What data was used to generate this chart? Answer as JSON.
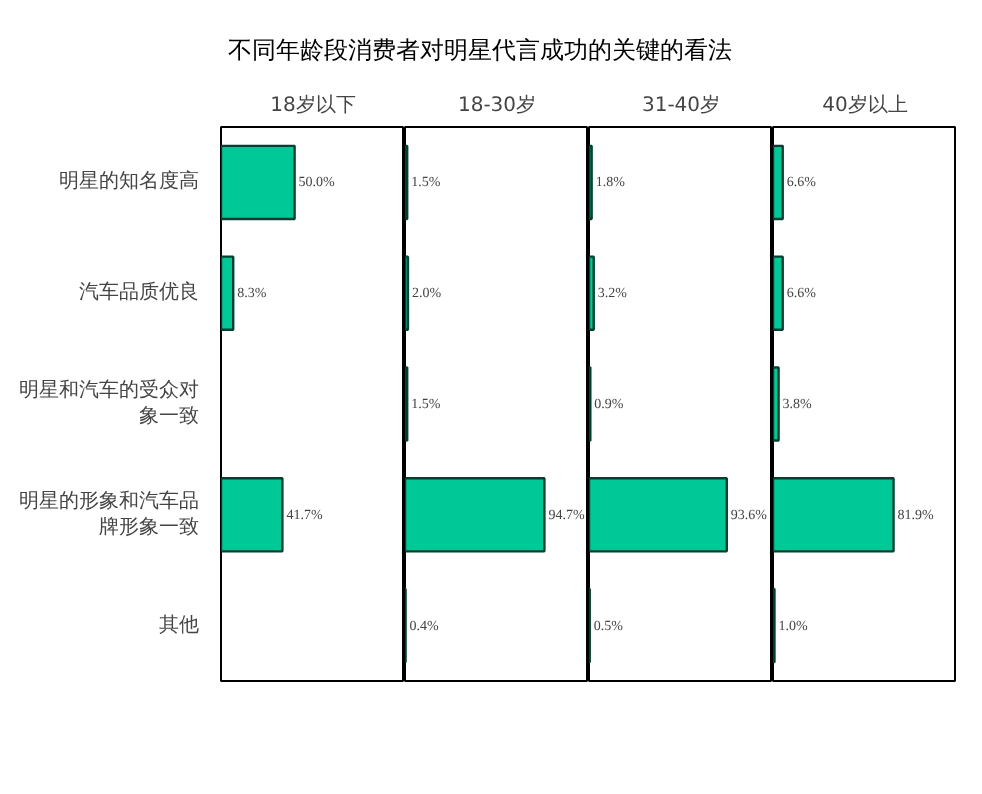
{
  "chart_data": [
    {
      "type": "bar",
      "orientation": "horizontal",
      "title": "不同年龄段消费者对明星代言成功的关键的看法",
      "subtitle": "18岁以下",
      "categories": [
        "明星的知名度高",
        "汽车品质优良",
        "明星和汽车的受众对象一致",
        "明星的形象和汽车品牌形象一致",
        "其他"
      ],
      "values": [
        50.0,
        8.3,
        null,
        41.7,
        null
      ],
      "value_labels": [
        "50.0%",
        "8.3%",
        null,
        "41.7%",
        null
      ],
      "color": "#00c896",
      "xlim": [
        0,
        125
      ],
      "tick_labels": "y",
      "grid": false
    },
    {
      "type": "bar",
      "orientation": "horizontal",
      "subtitle": "18-30岁",
      "categories": [
        "明星的知名度高",
        "汽车品质优良",
        "明星和汽车的受众对象一致",
        "明星的形象和汽车品牌形象一致",
        "其他"
      ],
      "values": [
        1.5,
        2.0,
        1.5,
        94.7,
        0.4
      ],
      "value_labels": [
        "1.5%",
        "2.0%",
        "1.5%",
        "94.7%",
        "0.4%"
      ],
      "color": "#00c896",
      "xlim": [
        0,
        125
      ],
      "tick_labels": false,
      "grid": false
    },
    {
      "type": "bar",
      "orientation": "horizontal",
      "subtitle": "31-40岁",
      "categories": [
        "明星的知名度高",
        "汽车品质优良",
        "明星和汽车的受众对象一致",
        "明星的形象和汽车品牌形象一致",
        "其他"
      ],
      "values": [
        1.8,
        3.2,
        0.9,
        93.6,
        0.5
      ],
      "value_labels": [
        "1.8%",
        "3.2%",
        "0.9%",
        "93.6%",
        "0.5%"
      ],
      "color": "#00c896",
      "xlim": [
        0,
        125
      ],
      "tick_labels": false,
      "grid": false
    },
    {
      "type": "bar",
      "orientation": "horizontal",
      "subtitle": "40岁以上",
      "categories": [
        "明星的知名度高",
        "汽车品质优良",
        "明星和汽车的受众对象一致",
        "明星的形象和汽车品牌形象一致",
        "其他"
      ],
      "values": [
        6.6,
        6.6,
        3.8,
        81.9,
        1.0
      ],
      "value_labels": [
        "6.6%",
        "6.6%",
        "3.8%",
        "81.9%",
        "1.0%"
      ],
      "color": "#00c896",
      "xlim": [
        0,
        125
      ],
      "tick_labels": false,
      "grid": false
    }
  ]
}
